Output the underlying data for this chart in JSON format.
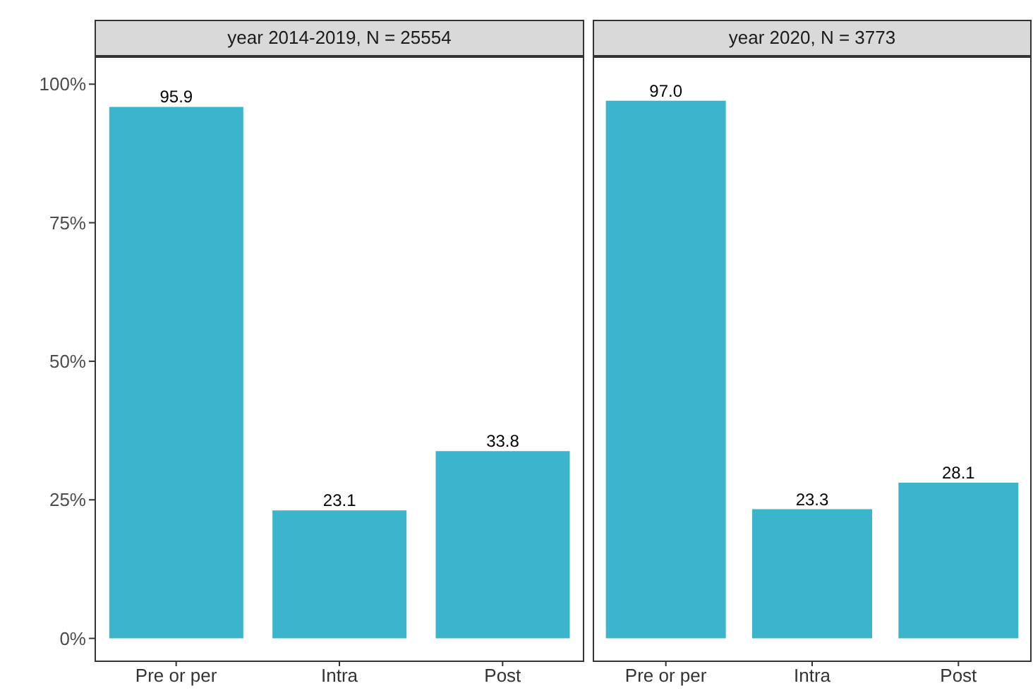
{
  "chart_data": [
    {
      "type": "bar",
      "title": "year 2014-2019, N = 25554",
      "categories": [
        "Pre or per",
        "Intra",
        "Post"
      ],
      "values": [
        95.9,
        23.1,
        33.8
      ],
      "value_labels": [
        "95.9",
        "23.1",
        "33.8"
      ],
      "color": "#3bb5cc",
      "ylim": [
        -4,
        105
      ],
      "yticks": [
        {
          "value": 0,
          "label": "0%"
        },
        {
          "value": 25,
          "label": "25%"
        },
        {
          "value": 50,
          "label": "50%"
        },
        {
          "value": 75,
          "label": "75%"
        },
        {
          "value": 100,
          "label": "100%"
        }
      ],
      "grid": false,
      "legend": false
    },
    {
      "type": "bar",
      "title": "year 2020, N = 3773",
      "categories": [
        "Pre or per",
        "Intra",
        "Post"
      ],
      "values": [
        97.0,
        23.3,
        28.1
      ],
      "value_labels": [
        "97.0",
        "23.3",
        "28.1"
      ],
      "color": "#3bb5cc",
      "ylim": [
        -4,
        105
      ],
      "grid": false,
      "legend": false,
      "tick_labels": "x"
    }
  ]
}
